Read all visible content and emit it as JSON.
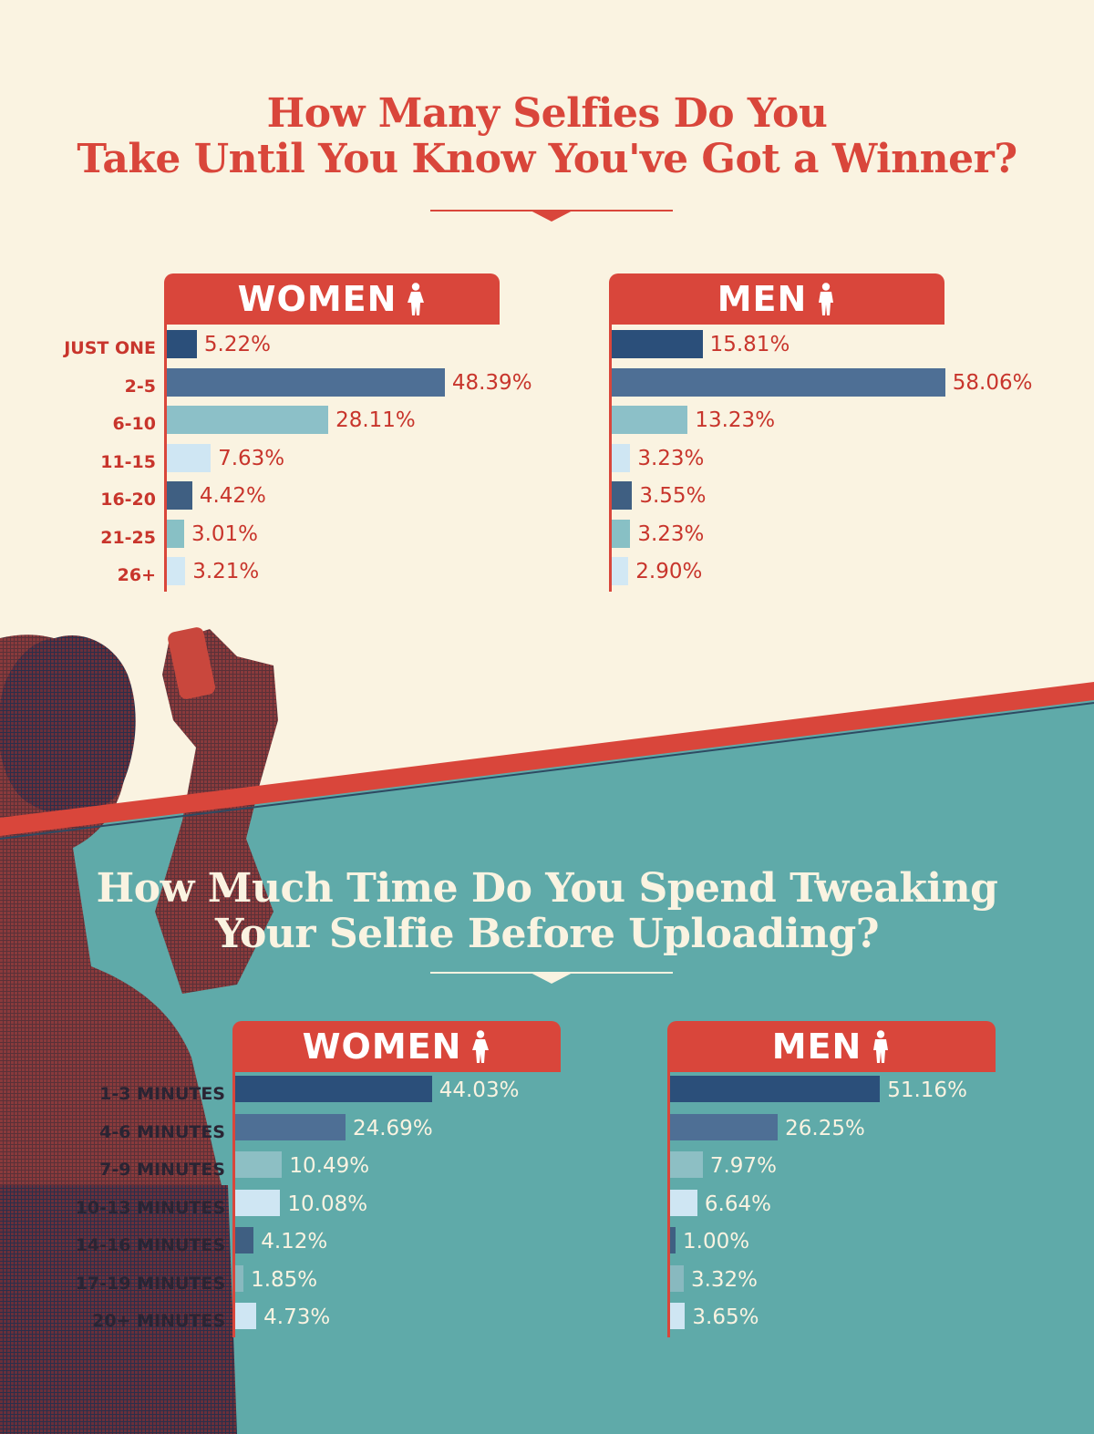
{
  "chart_data": [
    {
      "type": "bar",
      "orientation": "horizontal",
      "title": "How Many Selfies Do You Take Until You Know You've Got a Winner?",
      "title_lines": [
        "How Many Selfies Do You",
        "Take Until You Know You've Got a Winner?"
      ],
      "categories": [
        "JUST ONE",
        "2-5",
        "6-10",
        "11-15",
        "16-20",
        "21-25",
        "26+"
      ],
      "series": [
        {
          "name": "WOMEN",
          "values": [
            5.22,
            48.39,
            28.11,
            7.63,
            4.42,
            3.01,
            3.21
          ],
          "labels": [
            "5.22%",
            "48.39%",
            "28.11%",
            "7.63%",
            "4.42%",
            "3.01%",
            "3.21%"
          ]
        },
        {
          "name": "MEN",
          "values": [
            15.81,
            58.06,
            13.23,
            3.23,
            3.55,
            3.23,
            2.9
          ],
          "labels": [
            "15.81%",
            "58.06%",
            "13.23%",
            "3.23%",
            "3.55%",
            "3.23%",
            "2.90%"
          ]
        }
      ],
      "xlim": [
        0,
        100
      ],
      "unit": "%"
    },
    {
      "type": "bar",
      "orientation": "horizontal",
      "title": "How Much Time Do You Spend Tweaking Your Selfie Before Uploading?",
      "title_lines": [
        "How Much Time Do You Spend Tweaking",
        "Your Selfie Before Uploading?"
      ],
      "categories": [
        "1-3 MINUTES",
        "4-6 MINUTES",
        "7-9 MINUTES",
        "10-13 MINUTES",
        "14-16 MINUTES",
        "17-19 MINUTES",
        "20+ MINUTES"
      ],
      "series": [
        {
          "name": "WOMEN",
          "values": [
            44.03,
            24.69,
            10.49,
            10.08,
            4.12,
            1.85,
            4.73
          ],
          "labels": [
            "44.03%",
            "24.69%",
            "10.49%",
            "10.08%",
            "4.12%",
            "1.85%",
            "4.73%"
          ]
        },
        {
          "name": "MEN",
          "values": [
            51.16,
            26.25,
            7.97,
            6.64,
            1.0,
            3.32,
            3.65
          ],
          "labels": [
            "51.16%",
            "26.25%",
            "7.97%",
            "6.64%",
            "1.00%",
            "3.32%",
            "3.65%"
          ]
        }
      ],
      "xlim": [
        0,
        100
      ],
      "unit": "%"
    }
  ],
  "colors": {
    "background_top": "#faf3e1",
    "background_bottom": "#5faaa9",
    "accent_red": "#d9463b",
    "label_red": "#c8352c",
    "label_dark": "#2a2433",
    "value_light": "#faf3e1",
    "bar_palette": [
      "#2b4f7a",
      "#4e6f95",
      "#8cc0c8",
      "#cfe6f3",
      "#3f5f82",
      "#88c0c5",
      "#d2e8f4"
    ],
    "bar_palette_bottom": [
      "#2b4f7a",
      "#4e6f95",
      "#8dbfc4",
      "#cfe6f3",
      "#3f5f82",
      "#88b9bf",
      "#cfe6f3"
    ]
  },
  "icons": {
    "women": "female-person-icon",
    "men": "male-person-icon",
    "divider": "down-arrow-icon"
  }
}
